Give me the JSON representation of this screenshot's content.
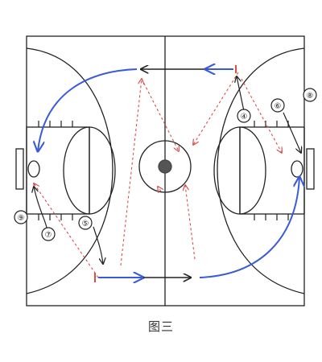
{
  "diagram": {
    "caption": "图三",
    "players": [
      {
        "id": "p4",
        "label": "④"
      },
      {
        "id": "p5",
        "label": "⑤"
      },
      {
        "id": "p6",
        "label": "⑥"
      },
      {
        "id": "p7",
        "label": "⑦"
      },
      {
        "id": "p8",
        "label": "⑧"
      },
      {
        "id": "p9",
        "label": "⑨"
      }
    ],
    "colors": {
      "court_line": "#222222",
      "pass_arrow": "#3a5bd8",
      "cut_path": "#e04a4a",
      "move_arrow": "#222222"
    }
  }
}
